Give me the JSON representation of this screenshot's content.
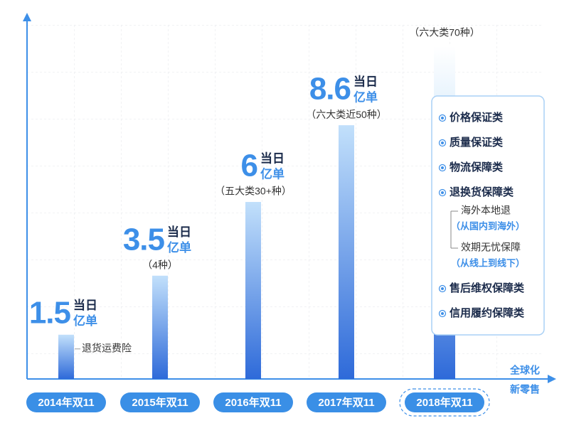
{
  "chart_data": {
    "type": "bar",
    "categories": [
      "2014年双11",
      "2015年双11",
      "2016年双11",
      "2017年双11",
      "2018年双11"
    ],
    "values": [
      1.5,
      3.5,
      6,
      8.6,
      null
    ],
    "value_suffix": [
      "当日",
      "亿单"
    ],
    "notes": [
      "退货运费险",
      "（4种）",
      "（五大类30+种）",
      "（六大类近50种）",
      "（六大类70种）"
    ],
    "color": "#2e6ad9",
    "ylim": [
      0,
      12
    ],
    "x_axis_end_labels": [
      "全球化",
      "新零售"
    ],
    "panel": [
      {
        "label": "价格保证类"
      },
      {
        "label": "质量保证类"
      },
      {
        "label": "物流保障类"
      },
      {
        "label": "退换货保障类",
        "children": [
          {
            "label": "海外本地退",
            "note": "（从国内到海外）"
          },
          {
            "label": "效期无忧保障",
            "note": "（从线上到线下）"
          }
        ]
      },
      {
        "label": "售后维权保障类"
      },
      {
        "label": "信用履约保障类"
      }
    ]
  }
}
